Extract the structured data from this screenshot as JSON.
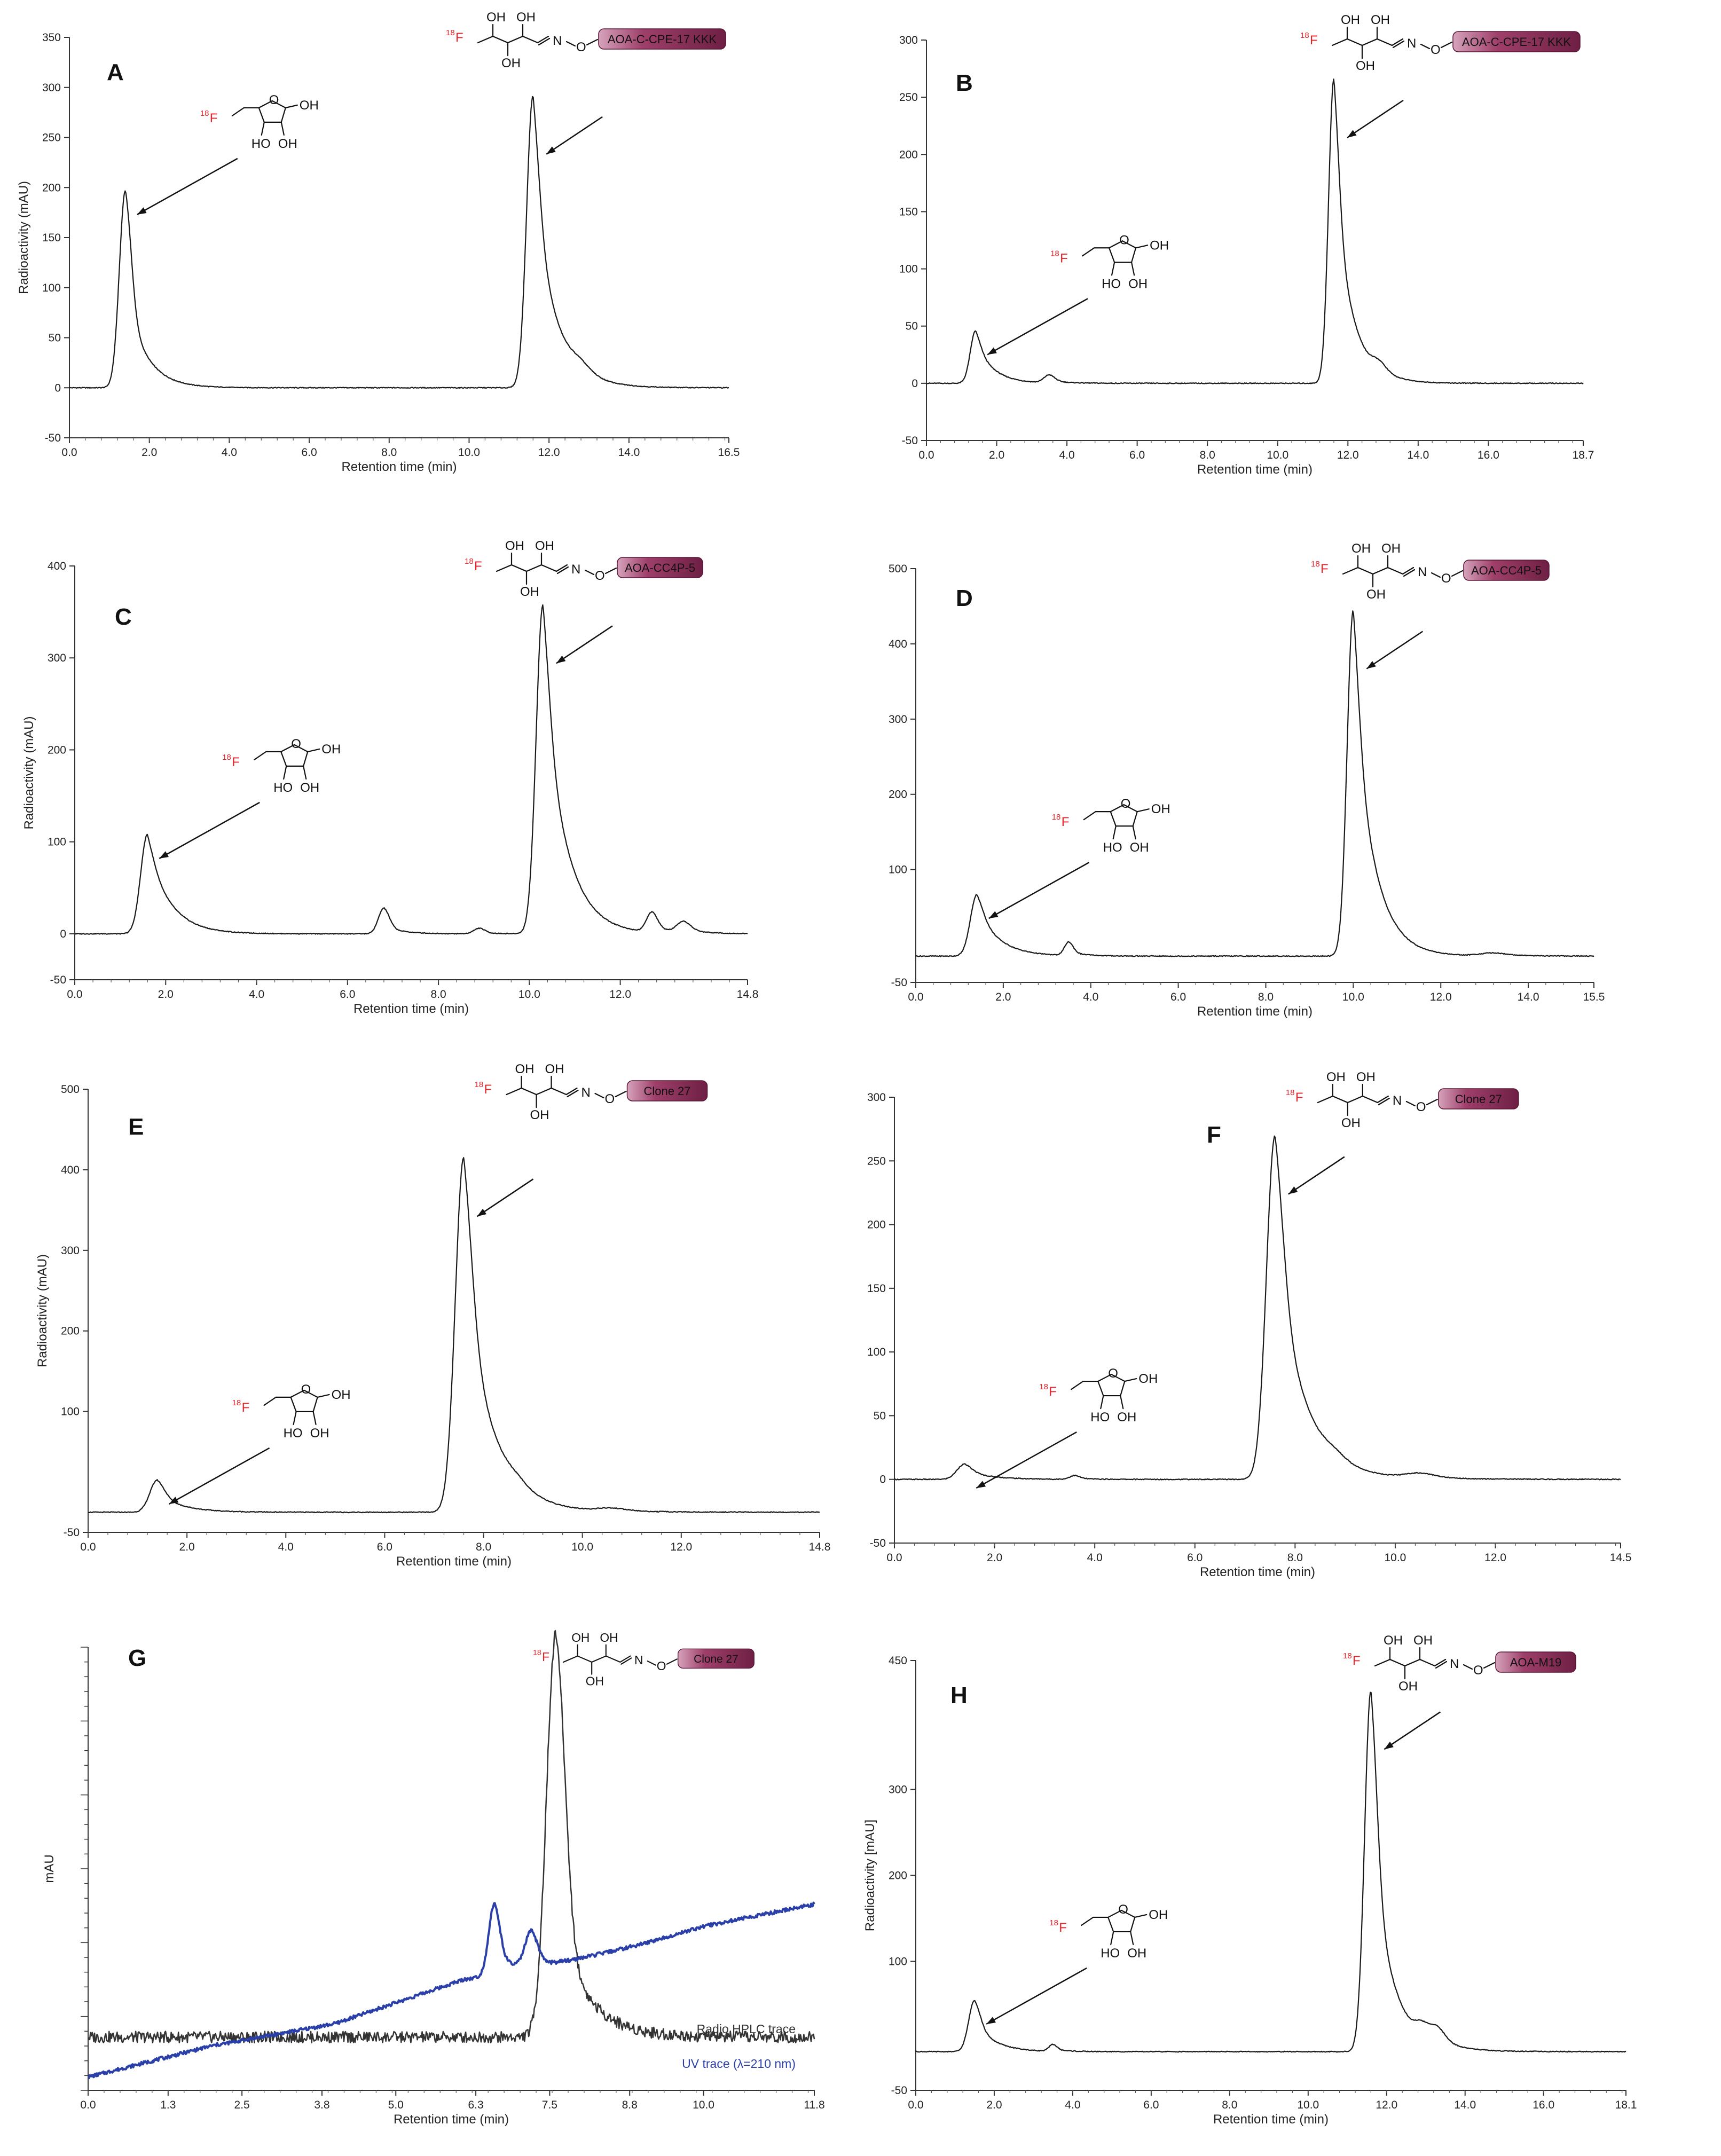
{
  "colors": {
    "trace": "#1a1a1a",
    "uv_trace": "#2a3fa8",
    "label_red": "#e8242b",
    "tag_fill": "#9e3f6a",
    "tag_fill_light": "#d6a3bb"
  },
  "chart_data": [
    {
      "id": "A",
      "type": "line",
      "xlabel": "Retention time (min)",
      "ylabel": "Radioactivity (mAU)",
      "xlim": [
        0,
        16.5
      ],
      "ylim": [
        -50,
        350
      ],
      "xticks": [
        "0.0",
        "2.0",
        "4.0",
        "6.0",
        "8.0",
        "10.0",
        "12.0",
        "14.0",
        "16.5"
      ],
      "yticks": [
        "-50",
        "0",
        "50",
        "100",
        "150",
        "200",
        "250",
        "300",
        "350"
      ],
      "tag": "AOA-C-CPE-17 KKK",
      "peaks": [
        {
          "x": 1.4,
          "y": 197,
          "w": 0.15,
          "t": 0.5
        },
        {
          "x": 11.6,
          "y": 292,
          "w": 0.16,
          "t": 0.75
        },
        {
          "x": 12.8,
          "y": 8,
          "w": 0.25,
          "t": 0.3
        }
      ],
      "baseline": 0
    },
    {
      "id": "B",
      "type": "line",
      "xlabel": "Retention time (min)",
      "ylabel": "",
      "xlim": [
        0,
        18.7
      ],
      "ylim": [
        -50,
        300
      ],
      "xticks": [
        "0.0",
        "2.0",
        "4.0",
        "6.0",
        "8.0",
        "10.0",
        "12.0",
        "14.0",
        "16.0",
        "18.7"
      ],
      "yticks": [
        "-50",
        "0",
        "50",
        "100",
        "150",
        "200",
        "250",
        "300"
      ],
      "tag": "AOA-C-CPE-17 KKK",
      "peaks": [
        {
          "x": 1.4,
          "y": 46,
          "w": 0.15,
          "t": 0.8
        },
        {
          "x": 3.5,
          "y": 7,
          "w": 0.15,
          "t": 0.3
        },
        {
          "x": 11.6,
          "y": 266,
          "w": 0.15,
          "t": 0.7
        },
        {
          "x": 12.9,
          "y": 8,
          "w": 0.2,
          "t": 0.3
        }
      ],
      "baseline": 0
    },
    {
      "id": "C",
      "type": "line",
      "xlabel": "Retention time (min)",
      "ylabel": "Radioactivity (mAU)",
      "xlim": [
        0,
        14.8
      ],
      "ylim": [
        -50,
        400
      ],
      "xticks": [
        "0.0",
        "2.0",
        "4.0",
        "6.0",
        "8.0",
        "10.0",
        "12.0",
        "14.8"
      ],
      "yticks": [
        "-50",
        "0",
        "100",
        "200",
        "300",
        "400"
      ],
      "tag": "AOA-CC4P-5",
      "peaks": [
        {
          "x": 1.6,
          "y": 108,
          "w": 0.15,
          "t": 0.9
        },
        {
          "x": 6.8,
          "y": 28,
          "w": 0.12,
          "t": 0.3
        },
        {
          "x": 8.9,
          "y": 6,
          "w": 0.12,
          "t": 0.2
        },
        {
          "x": 10.3,
          "y": 358,
          "w": 0.15,
          "t": 0.8
        },
        {
          "x": 12.7,
          "y": 22,
          "w": 0.12,
          "t": 0.3
        },
        {
          "x": 13.4,
          "y": 12,
          "w": 0.15,
          "t": 0.3
        }
      ],
      "baseline": 0
    },
    {
      "id": "D",
      "type": "line",
      "xlabel": "Retention time (min)",
      "ylabel": "",
      "xlim": [
        0,
        15.5
      ],
      "ylim": [
        -50,
        500
      ],
      "xticks": [
        "0.0",
        "2.0",
        "4.0",
        "6.0",
        "8.0",
        "10.0",
        "12.0",
        "14.0",
        "15.5"
      ],
      "yticks": [
        "-50",
        "100",
        "200",
        "300",
        "400",
        "500"
      ],
      "tag": "AOA-CC4P-5",
      "peaks": [
        {
          "x": 1.4,
          "y": 82,
          "w": 0.15,
          "t": 0.8
        },
        {
          "x": 3.5,
          "y": 18,
          "w": 0.1,
          "t": 0.3
        },
        {
          "x": 10.0,
          "y": 460,
          "w": 0.14,
          "t": 0.8
        },
        {
          "x": 13.2,
          "y": 4,
          "w": 0.3,
          "t": 0.3
        }
      ],
      "baseline": -15
    },
    {
      "id": "E",
      "type": "line",
      "xlabel": "Retention time (min)",
      "ylabel": "Radioactivity (mAU)",
      "xlim": [
        0,
        14.8
      ],
      "ylim": [
        -50,
        500
      ],
      "xticks": [
        "0.0",
        "2.0",
        "4.0",
        "6.0",
        "8.0",
        "10.0",
        "12.0",
        "14.8"
      ],
      "yticks": [
        "-50",
        "100",
        "200",
        "300",
        "400",
        "500"
      ],
      "tag": "Clone 27",
      "peaks": [
        {
          "x": 1.4,
          "y": 40,
          "w": 0.15,
          "t": 0.6
        },
        {
          "x": 7.6,
          "y": 440,
          "w": 0.17,
          "t": 0.7
        },
        {
          "x": 8.7,
          "y": 6,
          "w": 0.2,
          "t": 0.3
        },
        {
          "x": 10.6,
          "y": 4,
          "w": 0.3,
          "t": 0.3
        }
      ],
      "baseline": -25
    },
    {
      "id": "F",
      "type": "line",
      "xlabel": "Retention time (min)",
      "ylabel": "",
      "xlim": [
        0,
        14.5
      ],
      "ylim": [
        -50,
        300
      ],
      "xticks": [
        "0.0",
        "2.0",
        "4.0",
        "6.0",
        "8.0",
        "10.0",
        "12.0",
        "14.5"
      ],
      "yticks": [
        "-50",
        "0",
        "50",
        "100",
        "150",
        "200",
        "250",
        "300"
      ],
      "tag": "Clone 27",
      "peaks": [
        {
          "x": 1.4,
          "y": 12,
          "w": 0.15,
          "t": 0.6
        },
        {
          "x": 3.6,
          "y": 3,
          "w": 0.1,
          "t": 0.3
        },
        {
          "x": 7.6,
          "y": 270,
          "w": 0.17,
          "t": 0.7
        },
        {
          "x": 8.8,
          "y": 4,
          "w": 0.2,
          "t": 0.3
        },
        {
          "x": 10.5,
          "y": 4,
          "w": 0.3,
          "t": 0.3
        }
      ],
      "baseline": 0
    },
    {
      "id": "G",
      "type": "line",
      "xlabel": "Retention time (min)",
      "ylabel": "mAU",
      "xlim": [
        0,
        11.8
      ],
      "ylim": [
        0,
        100
      ],
      "xticks": [
        "0.0",
        "1.3",
        "2.5",
        "3.8",
        "5.0",
        "6.3",
        "7.5",
        "8.8",
        "10.0",
        "11.8"
      ],
      "yticks": [],
      "tag": "Clone 27",
      "series": [
        {
          "name": "Radio HPLC trace",
          "peaks": [
            {
              "x": 7.6,
              "y": 91,
              "w": 0.15,
              "t": 0.3
            }
          ],
          "baseline": 12
        },
        {
          "name": "UV trace (λ=210 nm)",
          "ramp": [
            [
              0,
              3
            ],
            [
              2,
              10
            ],
            [
              4,
              15
            ],
            [
              6.1,
              25
            ],
            [
              7.5,
              28
            ],
            [
              9,
              33
            ],
            [
              10,
              37
            ],
            [
              11.8,
              42
            ]
          ],
          "peaks": [
            {
              "x": 6.6,
              "y": 16,
              "w": 0.09,
              "t": 0.3
            },
            {
              "x": 7.2,
              "y": 8,
              "w": 0.1,
              "t": 0.2
            }
          ]
        }
      ]
    },
    {
      "id": "H",
      "type": "line",
      "xlabel": "Retention time (min)",
      "ylabel": "Radioactivity [mAU]",
      "xlim": [
        0,
        18.1
      ],
      "ylim": [
        -50,
        450
      ],
      "xticks": [
        "0.0",
        "2.0",
        "4.0",
        "6.0",
        "8.0",
        "10.0",
        "12.0",
        "14.0",
        "16.0",
        "18.1"
      ],
      "yticks": [
        "-50",
        "100",
        "200",
        "300",
        "450"
      ],
      "tag": "AOA-M19",
      "peaks": [
        {
          "x": 1.5,
          "y": 60,
          "w": 0.15,
          "t": 0.6
        },
        {
          "x": 3.5,
          "y": 8,
          "w": 0.1,
          "t": 0.3
        },
        {
          "x": 11.6,
          "y": 420,
          "w": 0.16,
          "t": 0.6
        },
        {
          "x": 12.9,
          "y": 14,
          "w": 0.17,
          "t": 0.3
        },
        {
          "x": 13.3,
          "y": 18,
          "w": 0.2,
          "t": 0.3
        }
      ],
      "baseline": -5
    }
  ]
}
